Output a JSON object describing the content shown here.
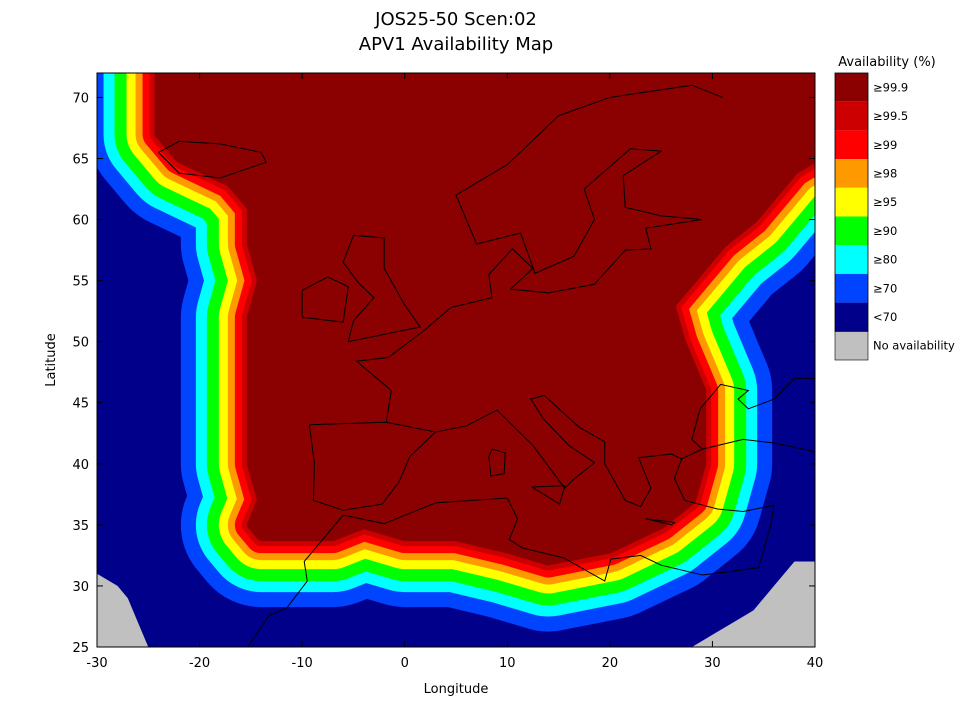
{
  "chart_data": {
    "type": "heatmap",
    "title": "JOS25-50 Scen:02",
    "subtitle": "APV1 Availability Map",
    "xlabel": "Longitude",
    "ylabel": "Latitude",
    "xlim": [
      -30,
      40
    ],
    "ylim": [
      25,
      72
    ],
    "xticks": [
      -30,
      -20,
      -10,
      0,
      10,
      20,
      30,
      40
    ],
    "yticks": [
      25,
      30,
      35,
      40,
      45,
      50,
      55,
      60,
      65,
      70
    ],
    "legend": {
      "title": "Availability (%)",
      "position": "right",
      "entries": [
        {
          "label": "≥99.9",
          "color": "#8b0000"
        },
        {
          "label": "≥99.5",
          "color": "#cc0000"
        },
        {
          "label": "≥99",
          "color": "#ff0000"
        },
        {
          "label": "≥98",
          "color": "#ff9900"
        },
        {
          "label": "≥95",
          "color": "#ffff00"
        },
        {
          "label": "≥90",
          "color": "#00ff00"
        },
        {
          "label": "≥80",
          "color": "#00ffff"
        },
        {
          "label": "≥70",
          "color": "#0044ff"
        },
        {
          "label": "<70",
          "color": "#00008b"
        },
        {
          "label": "No availability",
          "color": "#c0c0c0"
        }
      ]
    },
    "coverage_region_lonlat": [
      [
        -24,
        72
      ],
      [
        -24,
        67
      ],
      [
        -22,
        65
      ],
      [
        -17,
        63
      ],
      [
        -15,
        61
      ],
      [
        -15,
        58
      ],
      [
        -14,
        55
      ],
      [
        -15,
        52
      ],
      [
        -15,
        45
      ],
      [
        -15,
        40
      ],
      [
        -14,
        37
      ],
      [
        -15,
        35
      ],
      [
        -14,
        34
      ],
      [
        -7,
        34
      ],
      [
        -4,
        35
      ],
      [
        0,
        34
      ],
      [
        5,
        34
      ],
      [
        10,
        33
      ],
      [
        14,
        32
      ],
      [
        20,
        33
      ],
      [
        25,
        35
      ],
      [
        28,
        37
      ],
      [
        29,
        40
      ],
      [
        29,
        46
      ],
      [
        27,
        50
      ],
      [
        26,
        53
      ],
      [
        28,
        55
      ],
      [
        31,
        58
      ],
      [
        34,
        60
      ],
      [
        36,
        62
      ],
      [
        38,
        64
      ],
      [
        40,
        65
      ],
      [
        40,
        72
      ]
    ],
    "no_availability_lonlat": [
      [
        [
          -30,
          25
        ],
        [
          -30,
          31
        ],
        [
          -28,
          30
        ],
        [
          -27,
          29
        ],
        [
          -26,
          27
        ],
        [
          -25,
          25
        ]
      ],
      [
        [
          40,
          25
        ],
        [
          40,
          32
        ],
        [
          38,
          32
        ],
        [
          36,
          30
        ],
        [
          34,
          28
        ],
        [
          32,
          27
        ],
        [
          30,
          26
        ],
        [
          28,
          25
        ]
      ]
    ]
  }
}
